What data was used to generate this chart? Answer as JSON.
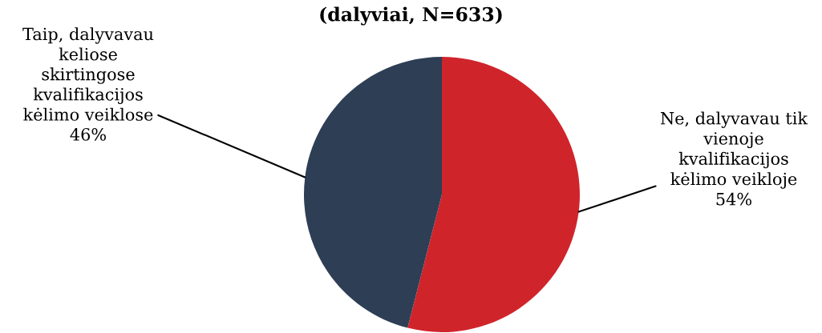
{
  "chart_data": {
    "type": "pie",
    "title": "(dalyviai, N=633)",
    "categories": [
      "Ne, dalyvavau tik\nvienoje\nkvalifikacijos\nkėlimo veikloje",
      "Taip, dalyvavau\nkeliose\nskirtingose\nkvalifikacijos\nkėlimo veiklose"
    ],
    "values": [
      54,
      46
    ],
    "colors": [
      "#d0242b",
      "#2e3e55"
    ],
    "value_labels": [
      "54%",
      "46%"
    ],
    "legend": false
  }
}
